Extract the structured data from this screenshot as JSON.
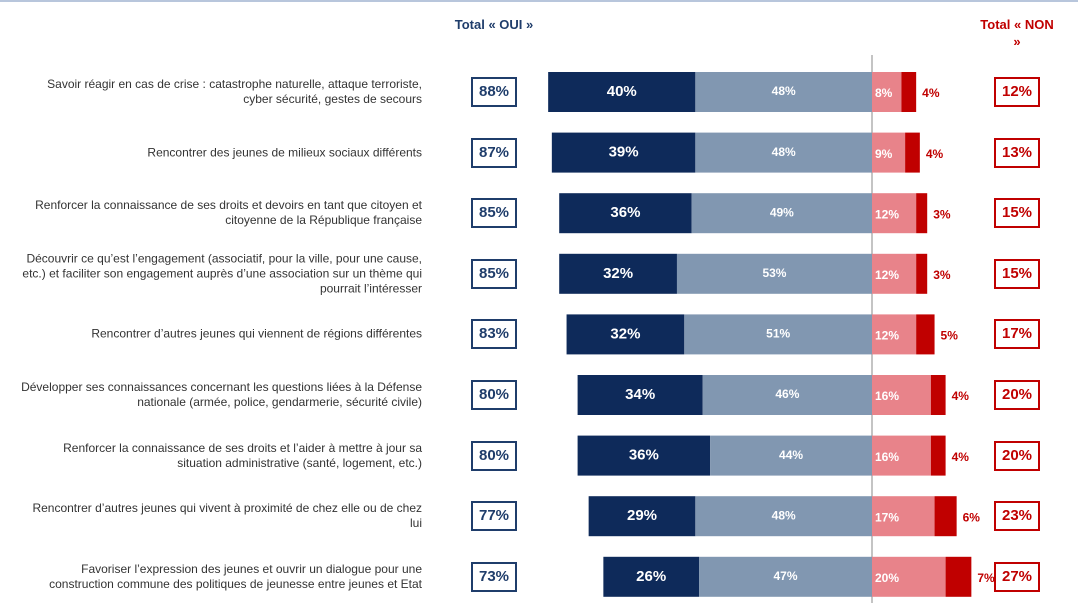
{
  "chart_data": {
    "type": "diverging_bar",
    "categories": [
      "Savoir réagir en cas de crise : catastrophe naturelle, attaque terroriste, cyber sécurité, gestes de secours",
      "Rencontrer des jeunes de milieux sociaux différents",
      "Renforcer la connaissance de ses droits et devoirs en tant que citoyen et citoyenne de la République française",
      "Découvrir ce qu’est l’engagement (associatif, pour la ville, pour une cause, etc.) et faciliter son engagement auprès d’une association sur un thème qui pourrait l’intéresser",
      "Rencontrer d’autres jeunes qui viennent de régions différentes",
      "Développer ses connaissances concernant les questions liées à la Défense nationale (armée, police, gendarmerie, sécurité civile)",
      "Renforcer la connaissance de ses droits et l’aider à mettre à jour sa situation administrative (santé, logement, etc.)",
      "Rencontrer d’autres jeunes qui vivent à proximité de chez elle ou de chez lui",
      "Favoriser l’expression des jeunes et ouvrir un dialogue pour une construction commune des politiques de jeunesse entre jeunes et Etat"
    ],
    "series": [
      {
        "color": "#0e2a5a",
        "values": [
          40,
          39,
          36,
          32,
          32,
          34,
          36,
          29,
          26
        ],
        "value_labels": [
          "40%",
          "39%",
          "36%",
          "32%",
          "32%",
          "34%",
          "36%",
          "29%",
          "26%"
        ]
      },
      {
        "color": "#8197b1",
        "values": [
          48,
          48,
          49,
          53,
          51,
          46,
          44,
          48,
          47
        ],
        "value_labels": [
          "48%",
          "48%",
          "49%",
          "53%",
          "51%",
          "46%",
          "44%",
          "48%",
          "47%"
        ]
      },
      {
        "color": "#e8838a",
        "values": [
          8,
          9,
          12,
          12,
          12,
          16,
          16,
          17,
          20
        ],
        "value_labels": [
          "8%",
          "9%",
          "12%",
          "12%",
          "12%",
          "16%",
          "16%",
          "17%",
          "20%"
        ]
      },
      {
        "color": "#c00000",
        "values": [
          4,
          4,
          3,
          3,
          5,
          4,
          4,
          6,
          7
        ],
        "value_labels": [
          "4%",
          "4%",
          "3%",
          "3%",
          "5%",
          "4%",
          "4%",
          "6%",
          "7%"
        ]
      }
    ],
    "totals": [
      {
        "title": "Total « OUI »",
        "color": "#1f3d6b",
        "values": [
          88,
          87,
          85,
          85,
          83,
          80,
          80,
          77,
          73
        ],
        "value_labels": [
          "88%",
          "87%",
          "85%",
          "85%",
          "83%",
          "80%",
          "80%",
          "77%",
          "73%"
        ]
      },
      {
        "title": "Total « NON »",
        "color": "#c00000",
        "values": [
          12,
          13,
          15,
          15,
          17,
          20,
          20,
          23,
          27
        ],
        "value_labels": [
          "12%",
          "13%",
          "15%",
          "15%",
          "17%",
          "20%",
          "20%",
          "23%",
          "27%"
        ]
      }
    ]
  }
}
